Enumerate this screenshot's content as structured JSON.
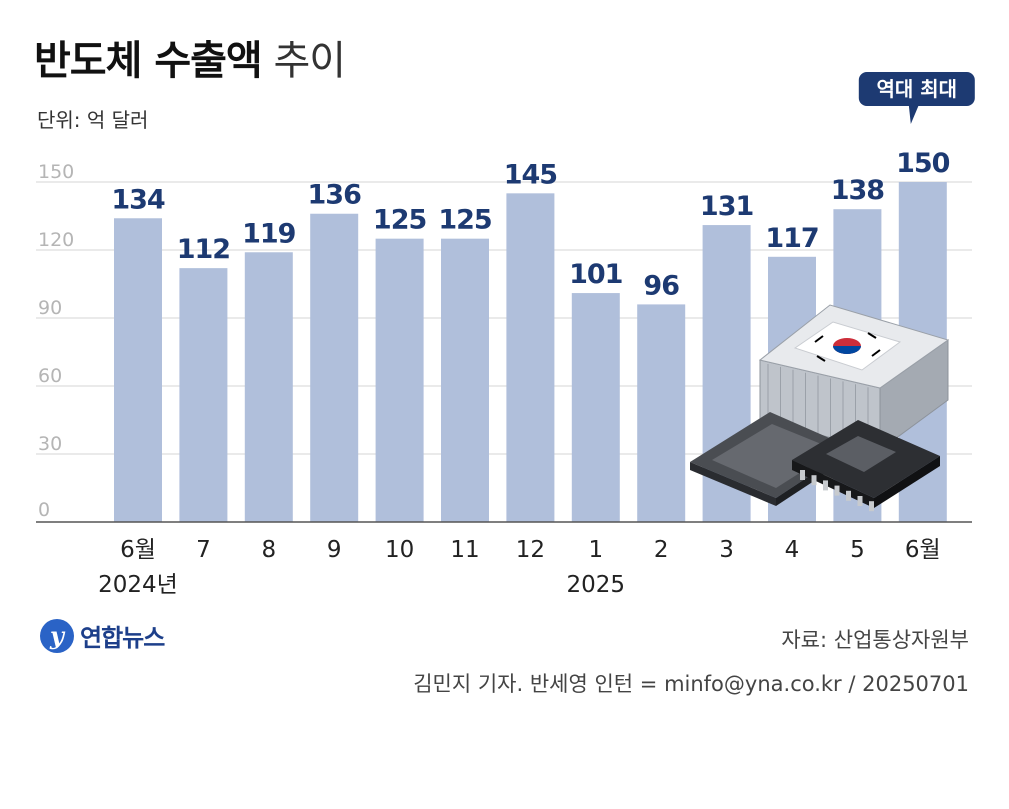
{
  "header": {
    "title_bold": "반도체 수출액",
    "title_light": "추이",
    "unit": "단위: 억 달러"
  },
  "chart_data": {
    "type": "bar",
    "categories": [
      "6월",
      "7",
      "8",
      "9",
      "10",
      "11",
      "12",
      "1",
      "2",
      "3",
      "4",
      "5",
      "6월"
    ],
    "year_labels": [
      {
        "label": "2024년",
        "under_index": 0
      },
      {
        "label": "2025",
        "under_index": 7
      }
    ],
    "values": [
      134,
      112,
      119,
      136,
      125,
      125,
      145,
      101,
      96,
      131,
      117,
      138,
      150
    ],
    "ylim": [
      0,
      150
    ],
    "yticks": [
      0,
      30,
      60,
      90,
      120,
      150
    ],
    "grid": true,
    "xlabel": "",
    "ylabel": "",
    "annotation": {
      "text": "역대 최대",
      "index": 12
    },
    "bar_color": "#b0bfdb",
    "label_color": "#1d3a72"
  },
  "footer": {
    "source": "자료: 산업통상자원부",
    "credit": "김민지 기자. 반세영 인턴 = minfo@yna.co.kr / 20250701",
    "logo_text": "연합뉴스",
    "logo_mark": "y"
  }
}
